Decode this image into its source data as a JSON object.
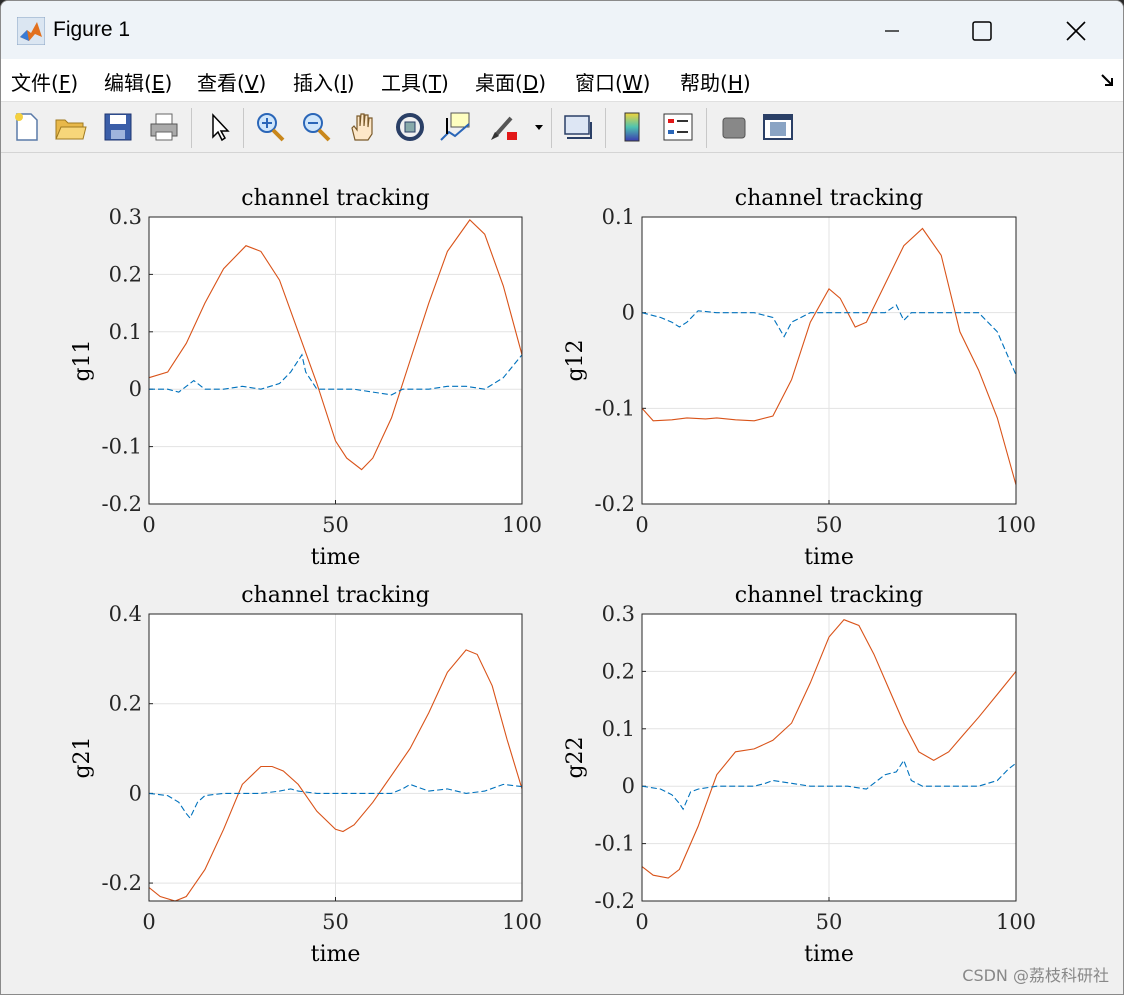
{
  "window": {
    "title": "Figure 1"
  },
  "menu": [
    {
      "label": "文件(",
      "key": "F",
      "tail": ")"
    },
    {
      "label": "编辑(",
      "key": "E",
      "tail": ")"
    },
    {
      "label": "查看(",
      "key": "V",
      "tail": ")"
    },
    {
      "label": "插入(",
      "key": "I",
      "tail": ")"
    },
    {
      "label": "工具(",
      "key": "T",
      "tail": ")"
    },
    {
      "label": "桌面(",
      "key": "D",
      "tail": ")"
    },
    {
      "label": "窗口(",
      "key": "W",
      "tail": ")"
    },
    {
      "label": "帮助(",
      "key": "H",
      "tail": ")"
    }
  ],
  "toolbar_icons": [
    "new-file-icon",
    "open-folder-icon",
    "save-icon",
    "print-icon",
    "pointer-icon",
    "zoom-in-icon",
    "zoom-out-icon",
    "pan-hand-icon",
    "rotate-3d-icon",
    "data-cursor-icon",
    "brush-icon",
    "brush-dropdown-icon",
    "link-plot-icon",
    "colorbar-icon",
    "legend-icon",
    "hide-plot-tools-icon",
    "show-plot-tools-icon"
  ],
  "watermark": "CSDN @荔枝科研社",
  "colors": {
    "solid": "#d95319",
    "dashed": "#0072bd",
    "grid": "#e3e3e3"
  },
  "chart_data": [
    {
      "type": "line",
      "title": "channel tracking",
      "xlabel": "time",
      "ylabel": "g11",
      "xlim": [
        0,
        100
      ],
      "ylim": [
        -0.2,
        0.3
      ],
      "xticks": [
        "0",
        "50",
        "100"
      ],
      "yticks": [
        "-0.2",
        "-0.1",
        "0",
        "0.1",
        "0.2",
        "0.3"
      ],
      "grid": true,
      "series": [
        {
          "style": "solid",
          "x": [
            0,
            5,
            10,
            15,
            20,
            26,
            30,
            35,
            40,
            45,
            50,
            53,
            57,
            60,
            65,
            70,
            75,
            80,
            86,
            90,
            95,
            100
          ],
          "y": [
            0.02,
            0.03,
            0.08,
            0.15,
            0.21,
            0.25,
            0.24,
            0.19,
            0.1,
            0.01,
            -0.09,
            -0.12,
            -0.14,
            -0.12,
            -0.05,
            0.05,
            0.15,
            0.24,
            0.295,
            0.27,
            0.18,
            0.06
          ]
        },
        {
          "style": "dashed",
          "x": [
            0,
            5,
            8,
            10,
            12,
            15,
            20,
            25,
            30,
            35,
            38,
            40,
            41,
            42,
            45,
            50,
            55,
            60,
            65,
            68,
            70,
            75,
            80,
            85,
            90,
            95,
            100
          ],
          "y": [
            0,
            0,
            -0.005,
            0.005,
            0.015,
            0,
            0,
            0.005,
            0,
            0.01,
            0.03,
            0.05,
            0.06,
            0.03,
            0,
            0,
            0,
            -0.005,
            -0.01,
            0,
            0,
            0,
            0.005,
            0.005,
            0,
            0.02,
            0.06
          ]
        }
      ]
    },
    {
      "type": "line",
      "title": "channel tracking",
      "xlabel": "time",
      "ylabel": "g12",
      "xlim": [
        0,
        100
      ],
      "ylim": [
        -0.2,
        0.1
      ],
      "xticks": [
        "0",
        "50",
        "100"
      ],
      "yticks": [
        "-0.2",
        "-0.1",
        "0",
        "0.1"
      ],
      "grid": true,
      "series": [
        {
          "style": "solid",
          "x": [
            0,
            3,
            8,
            12,
            17,
            20,
            25,
            30,
            35,
            40,
            45,
            50,
            53,
            57,
            60,
            65,
            70,
            75,
            80,
            85,
            90,
            95,
            100
          ],
          "y": [
            -0.1,
            -0.113,
            -0.112,
            -0.11,
            -0.111,
            -0.11,
            -0.112,
            -0.113,
            -0.108,
            -0.07,
            -0.01,
            0.025,
            0.015,
            -0.015,
            -0.01,
            0.03,
            0.07,
            0.088,
            0.06,
            -0.02,
            -0.06,
            -0.11,
            -0.18
          ]
        },
        {
          "style": "dashed",
          "x": [
            0,
            5,
            8,
            10,
            12,
            15,
            20,
            25,
            30,
            35,
            38,
            40,
            45,
            50,
            55,
            60,
            65,
            68,
            70,
            72,
            75,
            80,
            85,
            90,
            95,
            100
          ],
          "y": [
            0,
            -0.005,
            -0.01,
            -0.015,
            -0.01,
            0.002,
            0,
            0,
            0,
            -0.005,
            -0.025,
            -0.01,
            0,
            0,
            0,
            0,
            0,
            0.008,
            -0.008,
            0,
            0,
            0,
            0,
            0,
            -0.02,
            -0.065
          ]
        }
      ]
    },
    {
      "type": "line",
      "title": "channel tracking",
      "xlabel": "time",
      "ylabel": "g21",
      "xlim": [
        0,
        100
      ],
      "ylim": [
        -0.24,
        0.4
      ],
      "xticks": [
        "0",
        "50",
        "100"
      ],
      "yticks": [
        "-0.2",
        "0",
        "0.2",
        "0.4"
      ],
      "grid": true,
      "series": [
        {
          "style": "solid",
          "x": [
            0,
            3,
            7,
            10,
            15,
            20,
            25,
            30,
            33,
            36,
            40,
            45,
            50,
            52,
            55,
            60,
            65,
            70,
            75,
            80,
            85,
            88,
            92,
            96,
            100
          ],
          "y": [
            -0.21,
            -0.23,
            -0.24,
            -0.23,
            -0.17,
            -0.08,
            0.02,
            0.06,
            0.06,
            0.05,
            0.02,
            -0.04,
            -0.08,
            -0.085,
            -0.07,
            -0.02,
            0.04,
            0.1,
            0.18,
            0.27,
            0.32,
            0.31,
            0.24,
            0.12,
            0.01
          ]
        },
        {
          "style": "dashed",
          "x": [
            0,
            5,
            8,
            10,
            11,
            13,
            15,
            20,
            25,
            30,
            35,
            38,
            40,
            45,
            50,
            55,
            60,
            65,
            68,
            70,
            75,
            80,
            85,
            90,
            95,
            100
          ],
          "y": [
            0,
            -0.005,
            -0.02,
            -0.045,
            -0.055,
            -0.02,
            -0.005,
            0,
            0,
            0,
            0.005,
            0.01,
            0.005,
            0,
            0,
            0,
            0,
            0,
            0.01,
            0.02,
            0.005,
            0.01,
            0,
            0.005,
            0.02,
            0.015
          ]
        }
      ]
    },
    {
      "type": "line",
      "title": "channel tracking",
      "xlabel": "time",
      "ylabel": "g22",
      "xlim": [
        0,
        100
      ],
      "ylim": [
        -0.2,
        0.3
      ],
      "xticks": [
        "0",
        "50",
        "100"
      ],
      "yticks": [
        "-0.2",
        "-0.1",
        "0",
        "0.1",
        "0.2",
        "0.3"
      ],
      "grid": true,
      "series": [
        {
          "style": "solid",
          "x": [
            0,
            3,
            7,
            10,
            15,
            20,
            25,
            30,
            35,
            40,
            45,
            50,
            54,
            58,
            62,
            66,
            70,
            74,
            78,
            82,
            86,
            90,
            95,
            100
          ],
          "y": [
            -0.14,
            -0.155,
            -0.16,
            -0.145,
            -0.07,
            0.02,
            0.06,
            0.065,
            0.08,
            0.11,
            0.18,
            0.26,
            0.29,
            0.28,
            0.23,
            0.17,
            0.11,
            0.06,
            0.045,
            0.06,
            0.09,
            0.12,
            0.16,
            0.2
          ]
        },
        {
          "style": "dashed",
          "x": [
            0,
            5,
            8,
            10,
            11,
            13,
            15,
            20,
            25,
            30,
            33,
            35,
            40,
            45,
            50,
            55,
            60,
            65,
            68,
            70,
            72,
            75,
            80,
            85,
            90,
            95,
            98,
            100
          ],
          "y": [
            0,
            -0.005,
            -0.015,
            -0.03,
            -0.04,
            -0.01,
            -0.005,
            0,
            0,
            0,
            0.005,
            0.01,
            0.005,
            0,
            0,
            0,
            -0.005,
            0.02,
            0.025,
            0.045,
            0.01,
            0,
            0,
            0,
            0,
            0.01,
            0.03,
            0.04
          ]
        }
      ]
    }
  ]
}
